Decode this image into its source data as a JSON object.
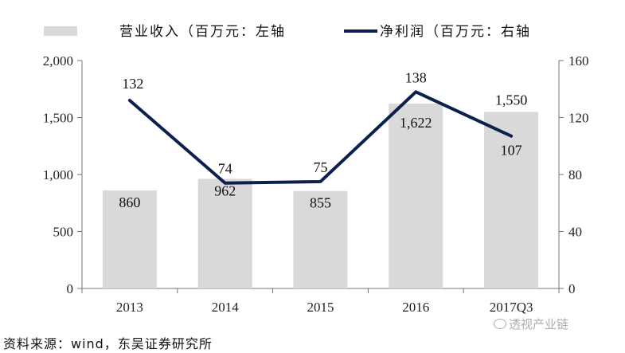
{
  "chart_data": {
    "type": "bar+line",
    "categories": [
      "2013",
      "2014",
      "2015",
      "2016",
      "2017Q3"
    ],
    "series": [
      {
        "name": "营业收入（百万元：左轴",
        "kind": "bar",
        "axis": "left",
        "values": [
          860,
          962,
          855,
          1622,
          1550
        ],
        "labels": [
          "860",
          "962",
          "855",
          "1,622",
          "1,550"
        ],
        "color": "#d9d9d9"
      },
      {
        "name": "净利润（百万元：右轴",
        "kind": "line",
        "axis": "right",
        "values": [
          132,
          74,
          75,
          138,
          107
        ],
        "labels": [
          "132",
          "74",
          "75",
          "138",
          "107"
        ],
        "color": "#0d1f4d"
      }
    ],
    "left_axis": {
      "ylim": [
        0,
        2000
      ],
      "ticks": [
        0,
        500,
        1000,
        1500,
        2000
      ],
      "tick_labels": [
        "0",
        "500",
        "1,000",
        "1,500",
        "2,000"
      ]
    },
    "right_axis": {
      "ylim": [
        0,
        160
      ],
      "ticks": [
        0,
        40,
        80,
        120,
        160
      ],
      "tick_labels": [
        "0",
        "40",
        "80",
        "120",
        "160"
      ]
    },
    "legend_position": "top"
  },
  "source_text": "资料来源：wind，东吴证券研究所",
  "watermark_text": "透视产业链"
}
